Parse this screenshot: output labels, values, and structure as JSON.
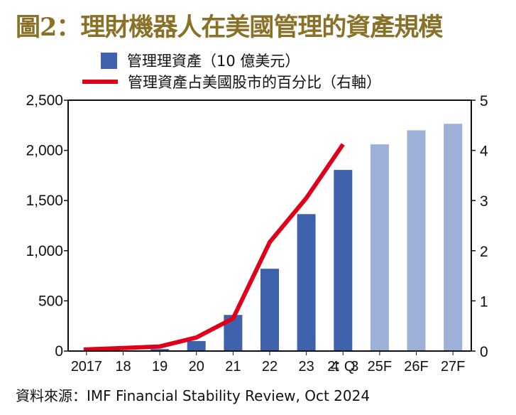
{
  "title": "圖2：理財機器人在美國管理的資產規模",
  "legend": {
    "bar_label": "管理理資產（10 億美元）",
    "line_label": "管理資產占美國股市的百分比（右軸）"
  },
  "source": "資料來源：IMF Financial Stability Review, Oct 2024",
  "colors": {
    "title": "#8a7128",
    "bar_actual": "#3f62ad",
    "bar_forecast": "#9db0d7",
    "line": "#e0001b",
    "axis": "#111111"
  },
  "chart_data": {
    "type": "bar",
    "title": "圖2：理財機器人在美國管理的資產規模",
    "xlabel": "",
    "ylabel": "管理資產（10 億美元）",
    "y2label": "管理資產占美國股市的百分比（右軸）",
    "categories": [
      "2017",
      "18",
      "19",
      "20",
      "21",
      "22",
      "23",
      "24：Q3",
      "25F",
      "26F",
      "27F"
    ],
    "series": [
      {
        "name": "管理資產（10 億美元）",
        "type": "bar",
        "axis": "left",
        "values": [
          3,
          6,
          20,
          100,
          360,
          820,
          1365,
          1805,
          2060,
          2200,
          2265
        ],
        "forecast": [
          false,
          false,
          false,
          false,
          false,
          false,
          false,
          false,
          true,
          true,
          true
        ]
      },
      {
        "name": "管理資產占美國股市的百分比（右軸）",
        "type": "line",
        "axis": "right",
        "values": [
          0.03,
          0.06,
          0.09,
          0.27,
          0.65,
          2.17,
          3.05,
          4.12,
          null,
          null,
          null
        ]
      }
    ],
    "ylim": [
      0,
      2500
    ],
    "yticks": [
      0,
      500,
      1000,
      1500,
      2000,
      2500
    ],
    "ytick_labels": [
      "0",
      "500",
      "1,000",
      "1,500",
      "2,000",
      "2,500"
    ],
    "y2lim": [
      0,
      5
    ],
    "y2ticks": [
      0,
      1,
      2,
      3,
      4,
      5
    ],
    "y2tick_labels": [
      "0",
      "1",
      "2",
      "3",
      "4",
      "5"
    ],
    "grid": false,
    "legend_position": "top"
  }
}
